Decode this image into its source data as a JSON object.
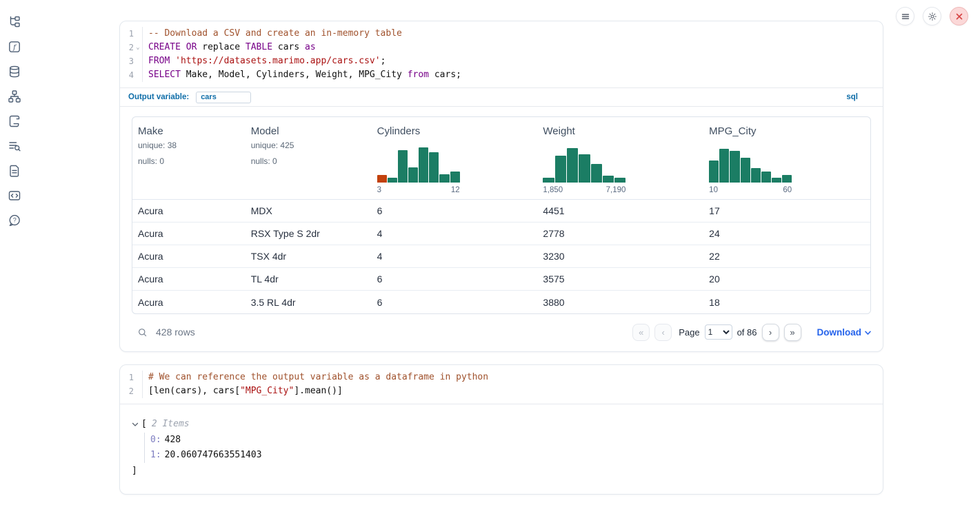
{
  "colors": {
    "keyword": "#770088",
    "string": "#aa1111",
    "comment": "#a0522d",
    "accent_blue": "#0e6da8",
    "link_blue": "#2563eb",
    "histogram_green": "#1b7d64",
    "histogram_orange": "#c2410c"
  },
  "sidebar": {
    "items": [
      {
        "name": "file-explorer",
        "icon": "file-tree-icon"
      },
      {
        "name": "variables",
        "icon": "function-square-icon"
      },
      {
        "name": "datasources",
        "icon": "database-icon"
      },
      {
        "name": "dependency-graph",
        "icon": "network-icon"
      },
      {
        "name": "scratchpad",
        "icon": "scroll-icon"
      },
      {
        "name": "logs",
        "icon": "list-search-icon"
      },
      {
        "name": "documentation",
        "icon": "document-icon"
      },
      {
        "name": "snippets",
        "icon": "code-snippet-icon"
      },
      {
        "name": "help",
        "icon": "help-chat-icon"
      }
    ]
  },
  "window_controls": [
    {
      "name": "menu",
      "icon": "hamburger-icon"
    },
    {
      "name": "settings",
      "icon": "gear-icon"
    },
    {
      "name": "shutdown",
      "icon": "close-icon"
    }
  ],
  "cells": {
    "sql": {
      "language_badge": "sql",
      "output_variable_label": "Output variable:",
      "output_variable_value": "cars",
      "foldable_lines": [
        2
      ],
      "lines": [
        [
          {
            "t": "cm",
            "v": "-- Download a CSV and create an in-memory table"
          }
        ],
        [
          {
            "t": "kw",
            "v": "CREATE"
          },
          {
            "t": "pl",
            "v": " "
          },
          {
            "t": "kw",
            "v": "OR"
          },
          {
            "t": "pl",
            "v": " replace "
          },
          {
            "t": "kw",
            "v": "TABLE"
          },
          {
            "t": "pl",
            "v": " cars "
          },
          {
            "t": "kw",
            "v": "as"
          }
        ],
        [
          {
            "t": "kw",
            "v": "FROM"
          },
          {
            "t": "pl",
            "v": " "
          },
          {
            "t": "str",
            "v": "'https://datasets.marimo.app/cars.csv'"
          },
          {
            "t": "pl",
            "v": ";"
          }
        ],
        [
          {
            "t": "kw",
            "v": "SELECT"
          },
          {
            "t": "pl",
            "v": " Make, Model, Cylinders, Weight, MPG_City "
          },
          {
            "t": "kw",
            "v": "from"
          },
          {
            "t": "pl",
            "v": " cars;"
          }
        ]
      ]
    },
    "python": {
      "lines": [
        [
          {
            "t": "cm",
            "v": "# We can reference the output variable as a dataframe in python"
          }
        ],
        [
          {
            "t": "pl",
            "v": "[len(cars), cars["
          },
          {
            "t": "str",
            "v": "\"MPG_City\""
          },
          {
            "t": "pl",
            "v": "].mean()]"
          }
        ]
      ]
    }
  },
  "table": {
    "columns": [
      {
        "label": "Make",
        "stats": [
          "unique: 38",
          "nulls: 0"
        ]
      },
      {
        "label": "Model",
        "stats": [
          "unique: 425",
          "nulls: 0"
        ]
      },
      {
        "label": "Cylinders",
        "histogram": {
          "heights": [
            0.22,
            0.13,
            0.9,
            0.43,
            0.98,
            0.85,
            0.23,
            0.3
          ],
          "highlight_first": true,
          "min_label": "3",
          "max_label": "12"
        }
      },
      {
        "label": "Weight",
        "histogram": {
          "heights": [
            0.13,
            0.75,
            0.96,
            0.79,
            0.52,
            0.19,
            0.13
          ],
          "highlight_first": false,
          "min_label": "1,850",
          "max_label": "7,190"
        }
      },
      {
        "label": "MPG_City",
        "histogram": {
          "heights": [
            0.62,
            0.95,
            0.89,
            0.69,
            0.41,
            0.3,
            0.13,
            0.22
          ],
          "highlight_first": false,
          "min_label": "10",
          "max_label": "60"
        }
      }
    ],
    "rows": [
      [
        "Acura",
        "MDX",
        "6",
        "4451",
        "17"
      ],
      [
        "Acura",
        "RSX Type S 2dr",
        "4",
        "2778",
        "24"
      ],
      [
        "Acura",
        "TSX 4dr",
        "4",
        "3230",
        "22"
      ],
      [
        "Acura",
        "TL 4dr",
        "6",
        "3575",
        "20"
      ],
      [
        "Acura",
        "3.5 RL 4dr",
        "6",
        "3880",
        "18"
      ]
    ],
    "footer": {
      "row_count": "428 rows",
      "pagination": {
        "first": "«",
        "prev": "‹",
        "next": "›",
        "last": "»"
      },
      "page_label": "Page",
      "page_value": "1",
      "page_total": "of 86",
      "download_label": "Download"
    }
  },
  "output_tree": {
    "open_bracket": "[",
    "items_label": "2 Items",
    "entries": [
      {
        "key": "0:",
        "value": "428"
      },
      {
        "key": "1:",
        "value": "20.060747663551403"
      }
    ],
    "close_bracket": "]"
  }
}
